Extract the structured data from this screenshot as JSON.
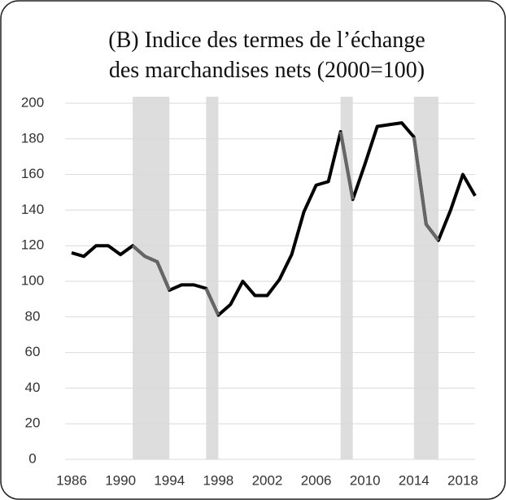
{
  "chart_data": {
    "type": "line",
    "title": [
      "(B) Indice des termes de l’échange",
      "des marchandises nets (2000=100)"
    ],
    "x": [
      1986,
      1987,
      1988,
      1989,
      1990,
      1991,
      1992,
      1993,
      1994,
      1995,
      1996,
      1997,
      1998,
      1999,
      2000,
      2001,
      2002,
      2003,
      2004,
      2005,
      2006,
      2007,
      2008,
      2009,
      2010,
      2011,
      2012,
      2013,
      2014,
      2015,
      2016,
      2017,
      2018,
      2019
    ],
    "series": [
      {
        "color": "#000000",
        "highlight_color": "#666666",
        "values": [
          116,
          114,
          120,
          120,
          115,
          120,
          114,
          111,
          95,
          98,
          98,
          96,
          81,
          87,
          100,
          92,
          92,
          101,
          115,
          139,
          154,
          156,
          184,
          146,
          166,
          187,
          188,
          189,
          181,
          132,
          123,
          140,
          160,
          148
        ]
      }
    ],
    "shaded_ranges": [
      [
        1991,
        1994
      ],
      [
        1997,
        1998
      ],
      [
        2008,
        2009
      ],
      [
        2014,
        2016
      ]
    ],
    "shade_color": "#dddddd",
    "xlim": [
      1986,
      2019
    ],
    "xticks": [
      1986,
      1990,
      1994,
      1998,
      2002,
      2006,
      2010,
      2014,
      2018
    ],
    "ylim": [
      0,
      200
    ],
    "yticks": [
      0,
      20,
      40,
      60,
      80,
      100,
      120,
      140,
      160,
      180,
      200
    ],
    "grid": true
  }
}
